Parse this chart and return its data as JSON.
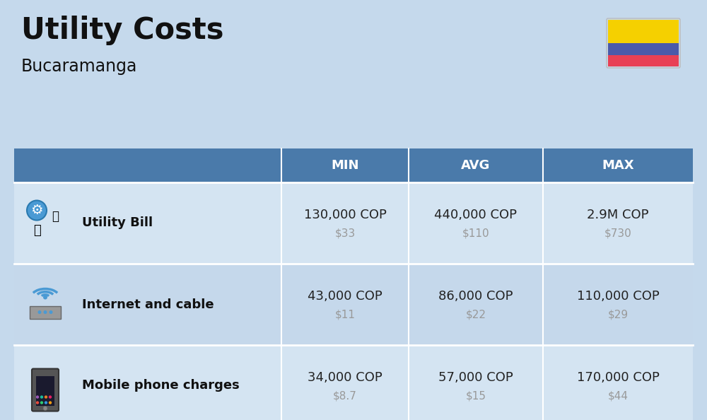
{
  "title": "Utility Costs",
  "subtitle": "Bucaramanga",
  "background_color": "#c5d9ec",
  "header_bg_color": "#4a7aaa",
  "header_text_color": "#ffffff",
  "row_bg_color_1": "#cfdfe f",
  "row_bg_color_alt": "#c0d4e8",
  "col_header_labels": [
    "MIN",
    "AVG",
    "MAX"
  ],
  "rows": [
    {
      "label": "Utility Bill",
      "icon": "utility",
      "min_cop": "130,000 COP",
      "min_usd": "$33",
      "avg_cop": "440,000 COP",
      "avg_usd": "$110",
      "max_cop": "2.9M COP",
      "max_usd": "$730"
    },
    {
      "label": "Internet and cable",
      "icon": "internet",
      "min_cop": "43,000 COP",
      "min_usd": "$11",
      "avg_cop": "86,000 COP",
      "avg_usd": "$22",
      "max_cop": "110,000 COP",
      "max_usd": "$29"
    },
    {
      "label": "Mobile phone charges",
      "icon": "mobile",
      "min_cop": "34,000 COP",
      "min_usd": "$8.7",
      "avg_cop": "57,000 COP",
      "avg_usd": "$15",
      "max_cop": "170,000 COP",
      "max_usd": "$44"
    }
  ],
  "flag_yellow": "#F5D000",
  "flag_blue": "#4a5aaa",
  "flag_red": "#e84055",
  "title_fontsize": 30,
  "subtitle_fontsize": 17,
  "header_fontsize": 13,
  "label_fontsize": 13,
  "cop_fontsize": 13,
  "usd_fontsize": 11,
  "usd_color": "#999999",
  "label_color": "#111111",
  "cop_color": "#222222"
}
